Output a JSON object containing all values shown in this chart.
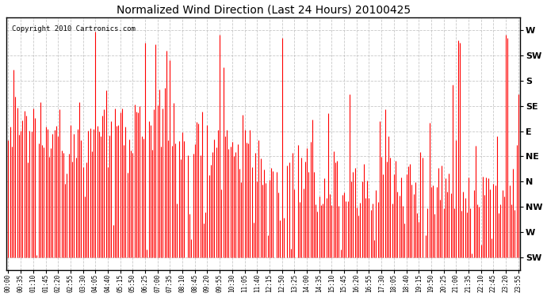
{
  "title": "Normalized Wind Direction (Last 24 Hours) 20100425",
  "copyright_text": "Copyright 2010 Cartronics.com",
  "line_color": "#ff0000",
  "background_color": "#ffffff",
  "grid_color": "#bbbbbb",
  "y_tick_labels": [
    "W",
    "SW",
    "S",
    "SE",
    "E",
    "NE",
    "N",
    "NW",
    "W",
    "SW"
  ],
  "y_tick_values": [
    10,
    9,
    8,
    7,
    6,
    5,
    4,
    3,
    2,
    1
  ],
  "ylim": [
    0.5,
    10.5
  ],
  "figsize": [
    6.9,
    3.75
  ],
  "dpi": 100,
  "time_step_minutes": 5,
  "label_every_minutes": 35,
  "baseline": 1
}
